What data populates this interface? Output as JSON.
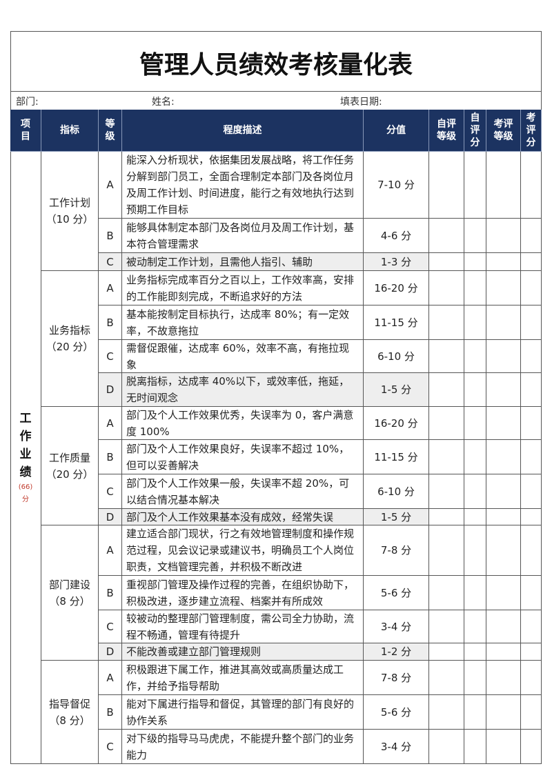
{
  "header": {
    "title": "管理人员绩效考核量化表"
  },
  "info": [
    "部门:",
    "姓名:",
    "填表日期:"
  ],
  "table": {
    "columns": [
      "项\n目",
      "指标",
      "等\n级",
      "程度描述",
      "分值",
      "自评\n等级",
      "自\n评\n分",
      "考评\n等级",
      "考\n评\n分"
    ],
    "category": {
      "label": "工\n作\n业\n绩",
      "score": "(66)",
      "unit": "分"
    },
    "groups": [
      {
        "name": "工作计划",
        "score": "（10 分）",
        "rows": [
          {
            "grade": "A",
            "description": "能深入分析现状，依据集团发展战略，将工作任务分解到部门员工，全面合理制定本部门及各岗位月及周工作计划、时间进度，能行之有效地执行达到预期工作目标",
            "points": "7-10 分"
          },
          {
            "grade": "B",
            "description": "能够具体制定本部门及各岗位月及周工作计划，基本符合管理需求",
            "points": "4-6 分"
          },
          {
            "grade": "C",
            "description": "被动制定工作计划，且需他人指引、辅助",
            "points": "1-3 分"
          }
        ]
      },
      {
        "name": "业务指标",
        "score": "（20 分）",
        "rows": [
          {
            "grade": "A",
            "description": "业务指标完成率百分之百以上，工作效率高，安排的工作能即刻完成，不断追求好的方法",
            "points": "16-20 分"
          },
          {
            "grade": "B",
            "description": "基本能按制定目标执行，达成率 80%；有一定效率，不故意拖拉",
            "points": "11-15 分"
          },
          {
            "grade": "C",
            "description": "需督促跟催，达成率 60%，效率不高，有拖拉现象",
            "points": "6-10 分"
          },
          {
            "grade": "D",
            "description": "脱离指标，达成率 40%以下，或效率低，拖延，无时间观念",
            "points": "1-5 分"
          }
        ]
      },
      {
        "name": "工作质量",
        "score": "（20 分）",
        "rows": [
          {
            "grade": "A",
            "description": "部门及个人工作效果优秀，失误率为 0，客户满意度 100%",
            "points": "16-20 分"
          },
          {
            "grade": "B",
            "description": "部门及个人工作效果良好，失误率不超过 10%，但可以妥善解决",
            "points": "11-15 分"
          },
          {
            "grade": "C",
            "description": "部门及个人工作效果一般，失误率不超 20%，可以结合情况基本解决",
            "points": "6-10 分"
          },
          {
            "grade": "D",
            "description": "部门及个人工作效果基本没有成效，经常失误",
            "points": "1-5 分"
          }
        ]
      },
      {
        "name": "部门建设",
        "score": "（8 分）",
        "rows": [
          {
            "grade": "A",
            "description": "建立适合部门现状，行之有效地管理制度和操作规范过程，见会议记录或建议书，明确员工个人岗位职责，文档管理完善，并积极不断改进",
            "points": "7-8 分"
          },
          {
            "grade": "B",
            "description": "重视部门管理及操作过程的完善，在组织协助下，积极改进，逐步建立流程、档案并有所成效",
            "points": "5-6 分"
          },
          {
            "grade": "C",
            "description": "较被动的整理部门管理制度，需公司全力协助，流程不畅通，管理有待提升",
            "points": "3-4 分"
          },
          {
            "grade": "D",
            "description": "不能改善或建立部门管理规则",
            "points": "1-2 分"
          }
        ]
      },
      {
        "name": "指导督促",
        "score": "（8 分）",
        "rows": [
          {
            "grade": "A",
            "description": "积极跟进下属工作，推进其高效或高质量达成工作，并给予指导帮助",
            "points": "7-8 分"
          },
          {
            "grade": "B",
            "description": "能对下属进行指导和督促，其管理的部门有良好的协作关系",
            "points": "5-6 分"
          },
          {
            "grade": "C",
            "description": "对下级的指导马马虎虎，不能提升整个部门的业务能力",
            "points": "3-4 分"
          }
        ]
      }
    ]
  }
}
